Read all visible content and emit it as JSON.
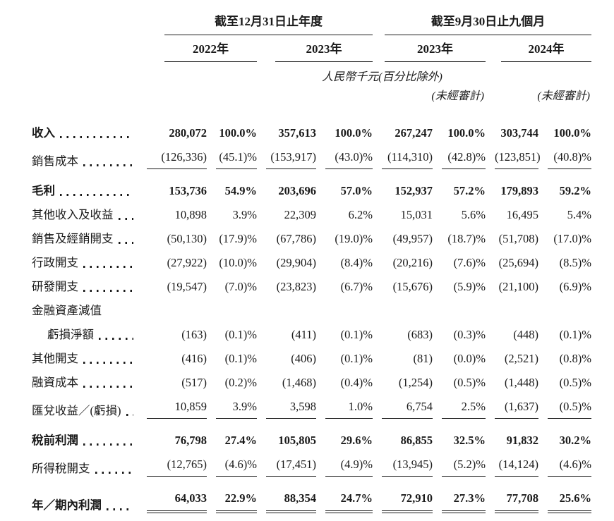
{
  "table": {
    "unit_note": "人民幣千元(百分比除外)",
    "col_groups": [
      {
        "label": "截至12月31日止年度",
        "years": [
          {
            "label": "2022年",
            "note": ""
          },
          {
            "label": "2023年",
            "note": ""
          }
        ]
      },
      {
        "label": "截至9月30日止九個月",
        "years": [
          {
            "label": "2023年",
            "note": "(未經審計)"
          },
          {
            "label": "2024年",
            "note": "(未經審計)"
          }
        ]
      }
    ],
    "rows": [
      {
        "label": "收入",
        "bold": true,
        "indent": false,
        "dots": true,
        "gap_top": false,
        "underline": "none",
        "values": [
          "280,072",
          "100.0%",
          "357,613",
          "100.0%",
          "267,247",
          "100.0%",
          "303,744",
          "100.0%"
        ]
      },
      {
        "label": "銷售成本",
        "bold": false,
        "indent": false,
        "dots": true,
        "gap_top": false,
        "underline": "single",
        "values": [
          "(126,336)",
          "(45.1)%",
          "(153,917)",
          "(43.0)%",
          "(114,310)",
          "(42.8)%",
          "(123,851)",
          "(40.8)%"
        ]
      },
      {
        "label": "毛利",
        "bold": true,
        "indent": false,
        "dots": true,
        "gap_top": true,
        "underline": "none",
        "values": [
          "153,736",
          "54.9%",
          "203,696",
          "57.0%",
          "152,937",
          "57.2%",
          "179,893",
          "59.2%"
        ]
      },
      {
        "label": "其他收入及收益",
        "bold": false,
        "indent": false,
        "dots": true,
        "gap_top": false,
        "underline": "none",
        "values": [
          "10,898",
          "3.9%",
          "22,309",
          "6.2%",
          "15,031",
          "5.6%",
          "16,495",
          "5.4%"
        ]
      },
      {
        "label": "銷售及經銷開支",
        "bold": false,
        "indent": false,
        "dots": true,
        "gap_top": false,
        "underline": "none",
        "values": [
          "(50,130)",
          "(17.9)%",
          "(67,786)",
          "(19.0)%",
          "(49,957)",
          "(18.7)%",
          "(51,708)",
          "(17.0)%"
        ]
      },
      {
        "label": "行政開支",
        "bold": false,
        "indent": false,
        "dots": true,
        "gap_top": false,
        "underline": "none",
        "values": [
          "(27,922)",
          "(10.0)%",
          "(29,904)",
          "(8.4)%",
          "(20,216)",
          "(7.6)%",
          "(25,694)",
          "(8.5)%"
        ]
      },
      {
        "label": "研發開支",
        "bold": false,
        "indent": false,
        "dots": true,
        "gap_top": false,
        "underline": "none",
        "values": [
          "(19,547)",
          "(7.0)%",
          "(23,823)",
          "(6.7)%",
          "(15,676)",
          "(5.9)%",
          "(21,100)",
          "(6.9)%"
        ]
      },
      {
        "label": "金融資產減值",
        "bold": false,
        "indent": false,
        "dots": false,
        "gap_top": false,
        "underline": "none",
        "values": []
      },
      {
        "label": "虧損淨額",
        "bold": false,
        "indent": true,
        "dots": true,
        "gap_top": false,
        "underline": "none",
        "values": [
          "(163)",
          "(0.1)%",
          "(411)",
          "(0.1)%",
          "(683)",
          "(0.3)%",
          "(448)",
          "(0.1)%"
        ]
      },
      {
        "label": "其他開支",
        "bold": false,
        "indent": false,
        "dots": true,
        "gap_top": false,
        "underline": "none",
        "values": [
          "(416)",
          "(0.1)%",
          "(406)",
          "(0.1)%",
          "(81)",
          "(0.0)%",
          "(2,521)",
          "(0.8)%"
        ]
      },
      {
        "label": "融資成本",
        "bold": false,
        "indent": false,
        "dots": true,
        "gap_top": false,
        "underline": "none",
        "values": [
          "(517)",
          "(0.2)%",
          "(1,468)",
          "(0.4)%",
          "(1,254)",
          "(0.5)%",
          "(1,448)",
          "(0.5)%"
        ]
      },
      {
        "label": "匯兌收益／(虧損)",
        "bold": false,
        "indent": false,
        "dots": true,
        "gap_top": false,
        "underline": "single",
        "values": [
          "10,859",
          "3.9%",
          "3,598",
          "1.0%",
          "6,754",
          "2.5%",
          "(1,637)",
          "(0.5)%"
        ]
      },
      {
        "label": "稅前利潤",
        "bold": true,
        "indent": false,
        "dots": true,
        "gap_top": true,
        "underline": "none",
        "values": [
          "76,798",
          "27.4%",
          "105,805",
          "29.6%",
          "86,855",
          "32.5%",
          "91,832",
          "30.2%"
        ]
      },
      {
        "label": "所得稅開支",
        "bold": false,
        "indent": false,
        "dots": true,
        "gap_top": false,
        "underline": "single",
        "values": [
          "(12,765)",
          "(4.6)%",
          "(17,451)",
          "(4.9)%",
          "(13,945)",
          "(5.2)%",
          "(14,124)",
          "(4.6)%"
        ]
      },
      {
        "label": "年／期內利潤",
        "bold": true,
        "indent": false,
        "dots": true,
        "gap_top": true,
        "underline": "double",
        "values": [
          "64,033",
          "22.9%",
          "88,354",
          "24.7%",
          "72,910",
          "27.3%",
          "77,708",
          "25.6%"
        ]
      }
    ]
  }
}
